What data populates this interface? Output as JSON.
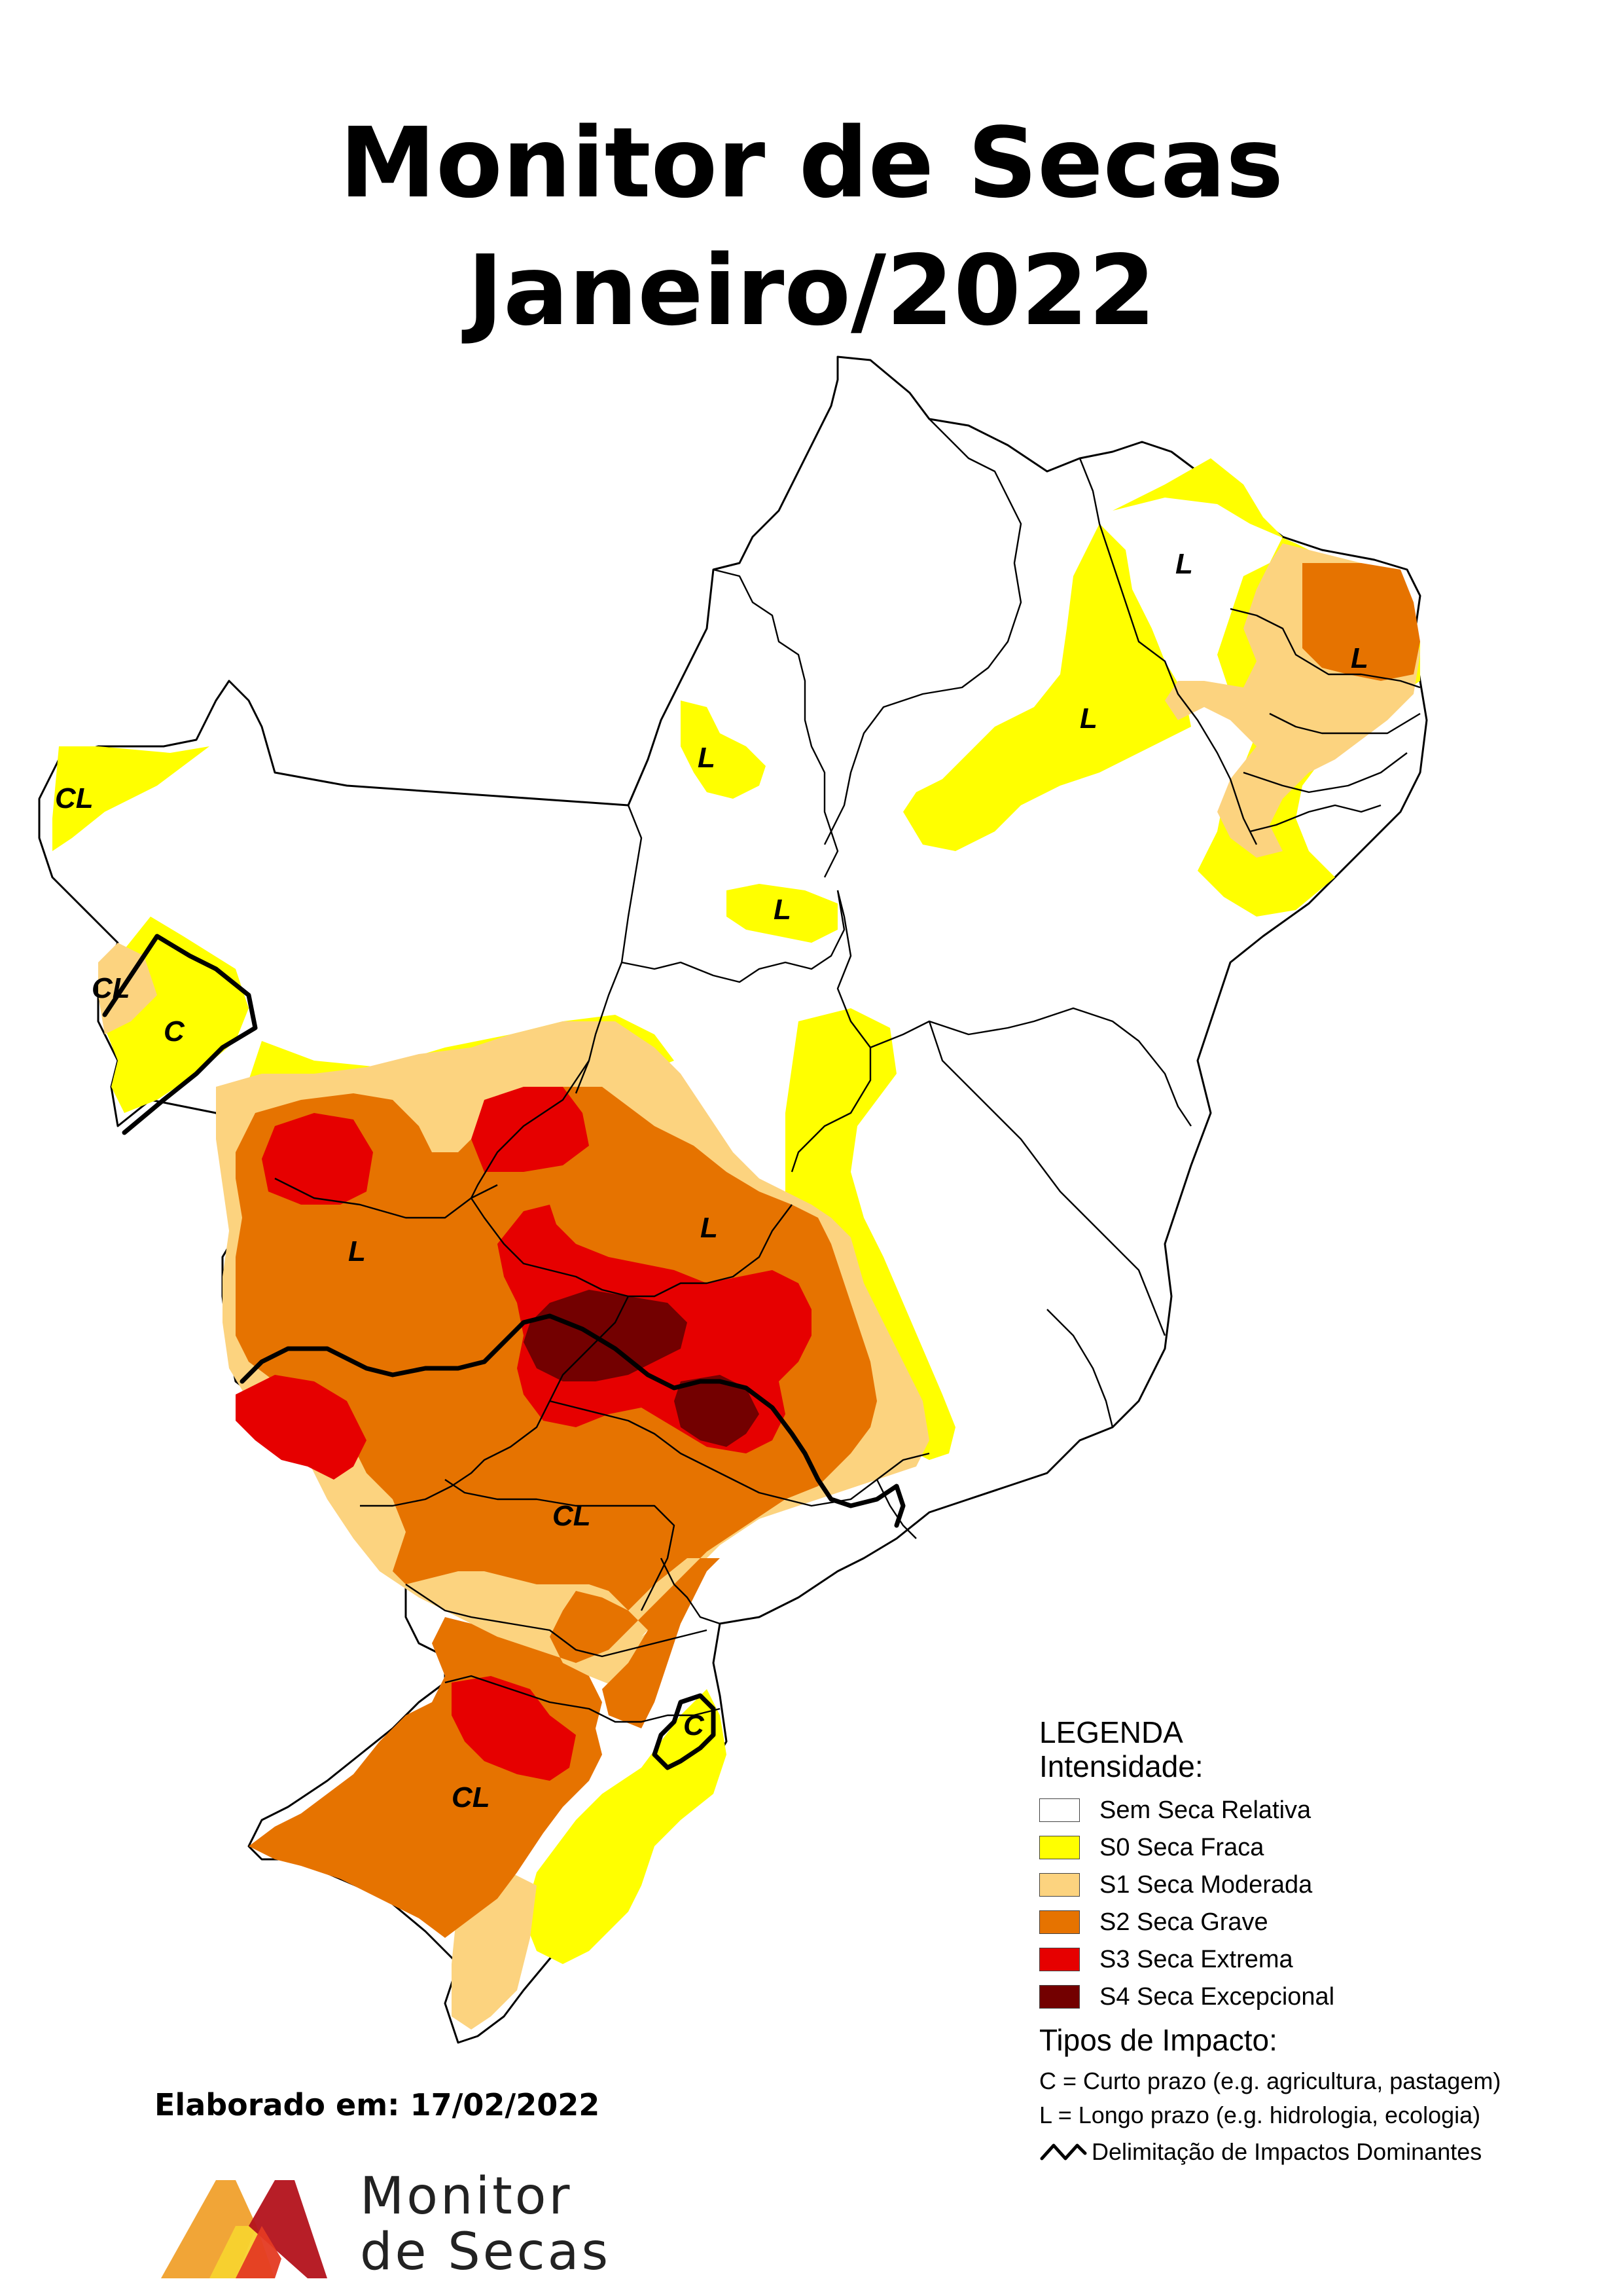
{
  "title_line1": "Monitor de Secas",
  "title_line2": "Janeiro/2022",
  "impact_labels": {
    "north_acre": "CL",
    "rondonia_cl": "CL",
    "rondonia_c": "C",
    "tocantins": "L",
    "bahia_west": "L",
    "piaui": "L",
    "ceara_south": "L",
    "rn": "L",
    "mato_grosso": "L",
    "goias": "L",
    "parana": "CL",
    "rs": "CL",
    "sc": "C"
  },
  "legend": {
    "title": "LEGENDA",
    "intensity_title": "Intensidade:",
    "items": [
      {
        "label": "Sem Seca Relativa",
        "color": "#ffffff"
      },
      {
        "label": "S0 Seca Fraca",
        "color": "#ffff00"
      },
      {
        "label": "S1 Seca Moderada",
        "color": "#fcd37f"
      },
      {
        "label": "S2 Seca Grave",
        "color": "#e67300"
      },
      {
        "label": "S3 Seca Extrema",
        "color": "#e60000"
      },
      {
        "label": "S4 Seca Excepcional",
        "color": "#730000"
      }
    ],
    "impact_title": "Tipos de Impacto:",
    "impact_c": "C = Curto prazo (e.g. agricultura, pastagem)",
    "impact_l": "L = Longo prazo (e.g. hidrologia, ecologia)",
    "impact_line": "Delimitação de Impactos Dominantes"
  },
  "elaborated": "Elaborado em: 17/02/2022",
  "logo_line1": "Monitor",
  "logo_line2": "de Secas"
}
